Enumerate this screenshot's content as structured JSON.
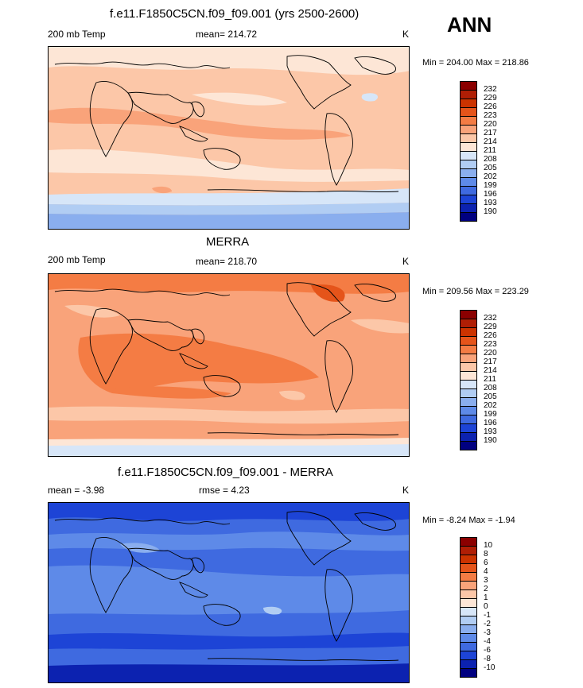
{
  "season": "ANN",
  "panels": [
    {
      "title": "f.e11.F1850C5CN.f09_f09.001 (yrs 2500-2600)",
      "left_label": "200 mb Temp",
      "center_label": "mean= 214.72",
      "right_label": "K",
      "minmax": "Min = 204.00 Max = 218.86",
      "levels": [
        "232",
        "229",
        "226",
        "223",
        "220",
        "217",
        "214",
        "211",
        "208",
        "205",
        "202",
        "199",
        "196",
        "193",
        "190"
      ],
      "colors": [
        "#8b0000",
        "#b01e05",
        "#cc3300",
        "#e5541a",
        "#f47c44",
        "#f9a37a",
        "#fcc7a8",
        "#fde6d6",
        "#d7e6f8",
        "#b1cdf3",
        "#8aaeee",
        "#5e8ae8",
        "#3f6ae0",
        "#1d44d6",
        "#0c22b0",
        "#000080"
      ]
    },
    {
      "title": "MERRA",
      "left_label": "200 mb Temp",
      "center_label": "mean= 218.70",
      "right_label": "K",
      "minmax": "Min = 209.56 Max = 223.29",
      "levels": [
        "232",
        "229",
        "226",
        "223",
        "220",
        "217",
        "214",
        "211",
        "208",
        "205",
        "202",
        "199",
        "196",
        "193",
        "190"
      ],
      "colors": [
        "#8b0000",
        "#b01e05",
        "#cc3300",
        "#e5541a",
        "#f47c44",
        "#f9a37a",
        "#fcc7a8",
        "#fde6d6",
        "#d7e6f8",
        "#b1cdf3",
        "#8aaeee",
        "#5e8ae8",
        "#3f6ae0",
        "#1d44d6",
        "#0c22b0",
        "#000080"
      ]
    },
    {
      "title": "f.e11.F1850C5CN.f09_f09.001 - MERRA",
      "left_label": "mean =  -3.98",
      "center_label": "rmse =   4.23",
      "right_label": "K",
      "minmax": "Min =  -8.24 Max =  -1.94",
      "levels": [
        "10",
        "8",
        "6",
        "4",
        "3",
        "2",
        "1",
        "0",
        "-1",
        "-2",
        "-3",
        "-4",
        "-6",
        "-8",
        "-10"
      ],
      "colors": [
        "#8b0000",
        "#b01e05",
        "#cc3300",
        "#e5541a",
        "#f47c44",
        "#f9a37a",
        "#fcc7a8",
        "#fde6d6",
        "#d7e6f8",
        "#b1cdf3",
        "#8aaeee",
        "#5e8ae8",
        "#3f6ae0",
        "#1d44d6",
        "#0c22b0",
        "#000080"
      ]
    }
  ]
}
